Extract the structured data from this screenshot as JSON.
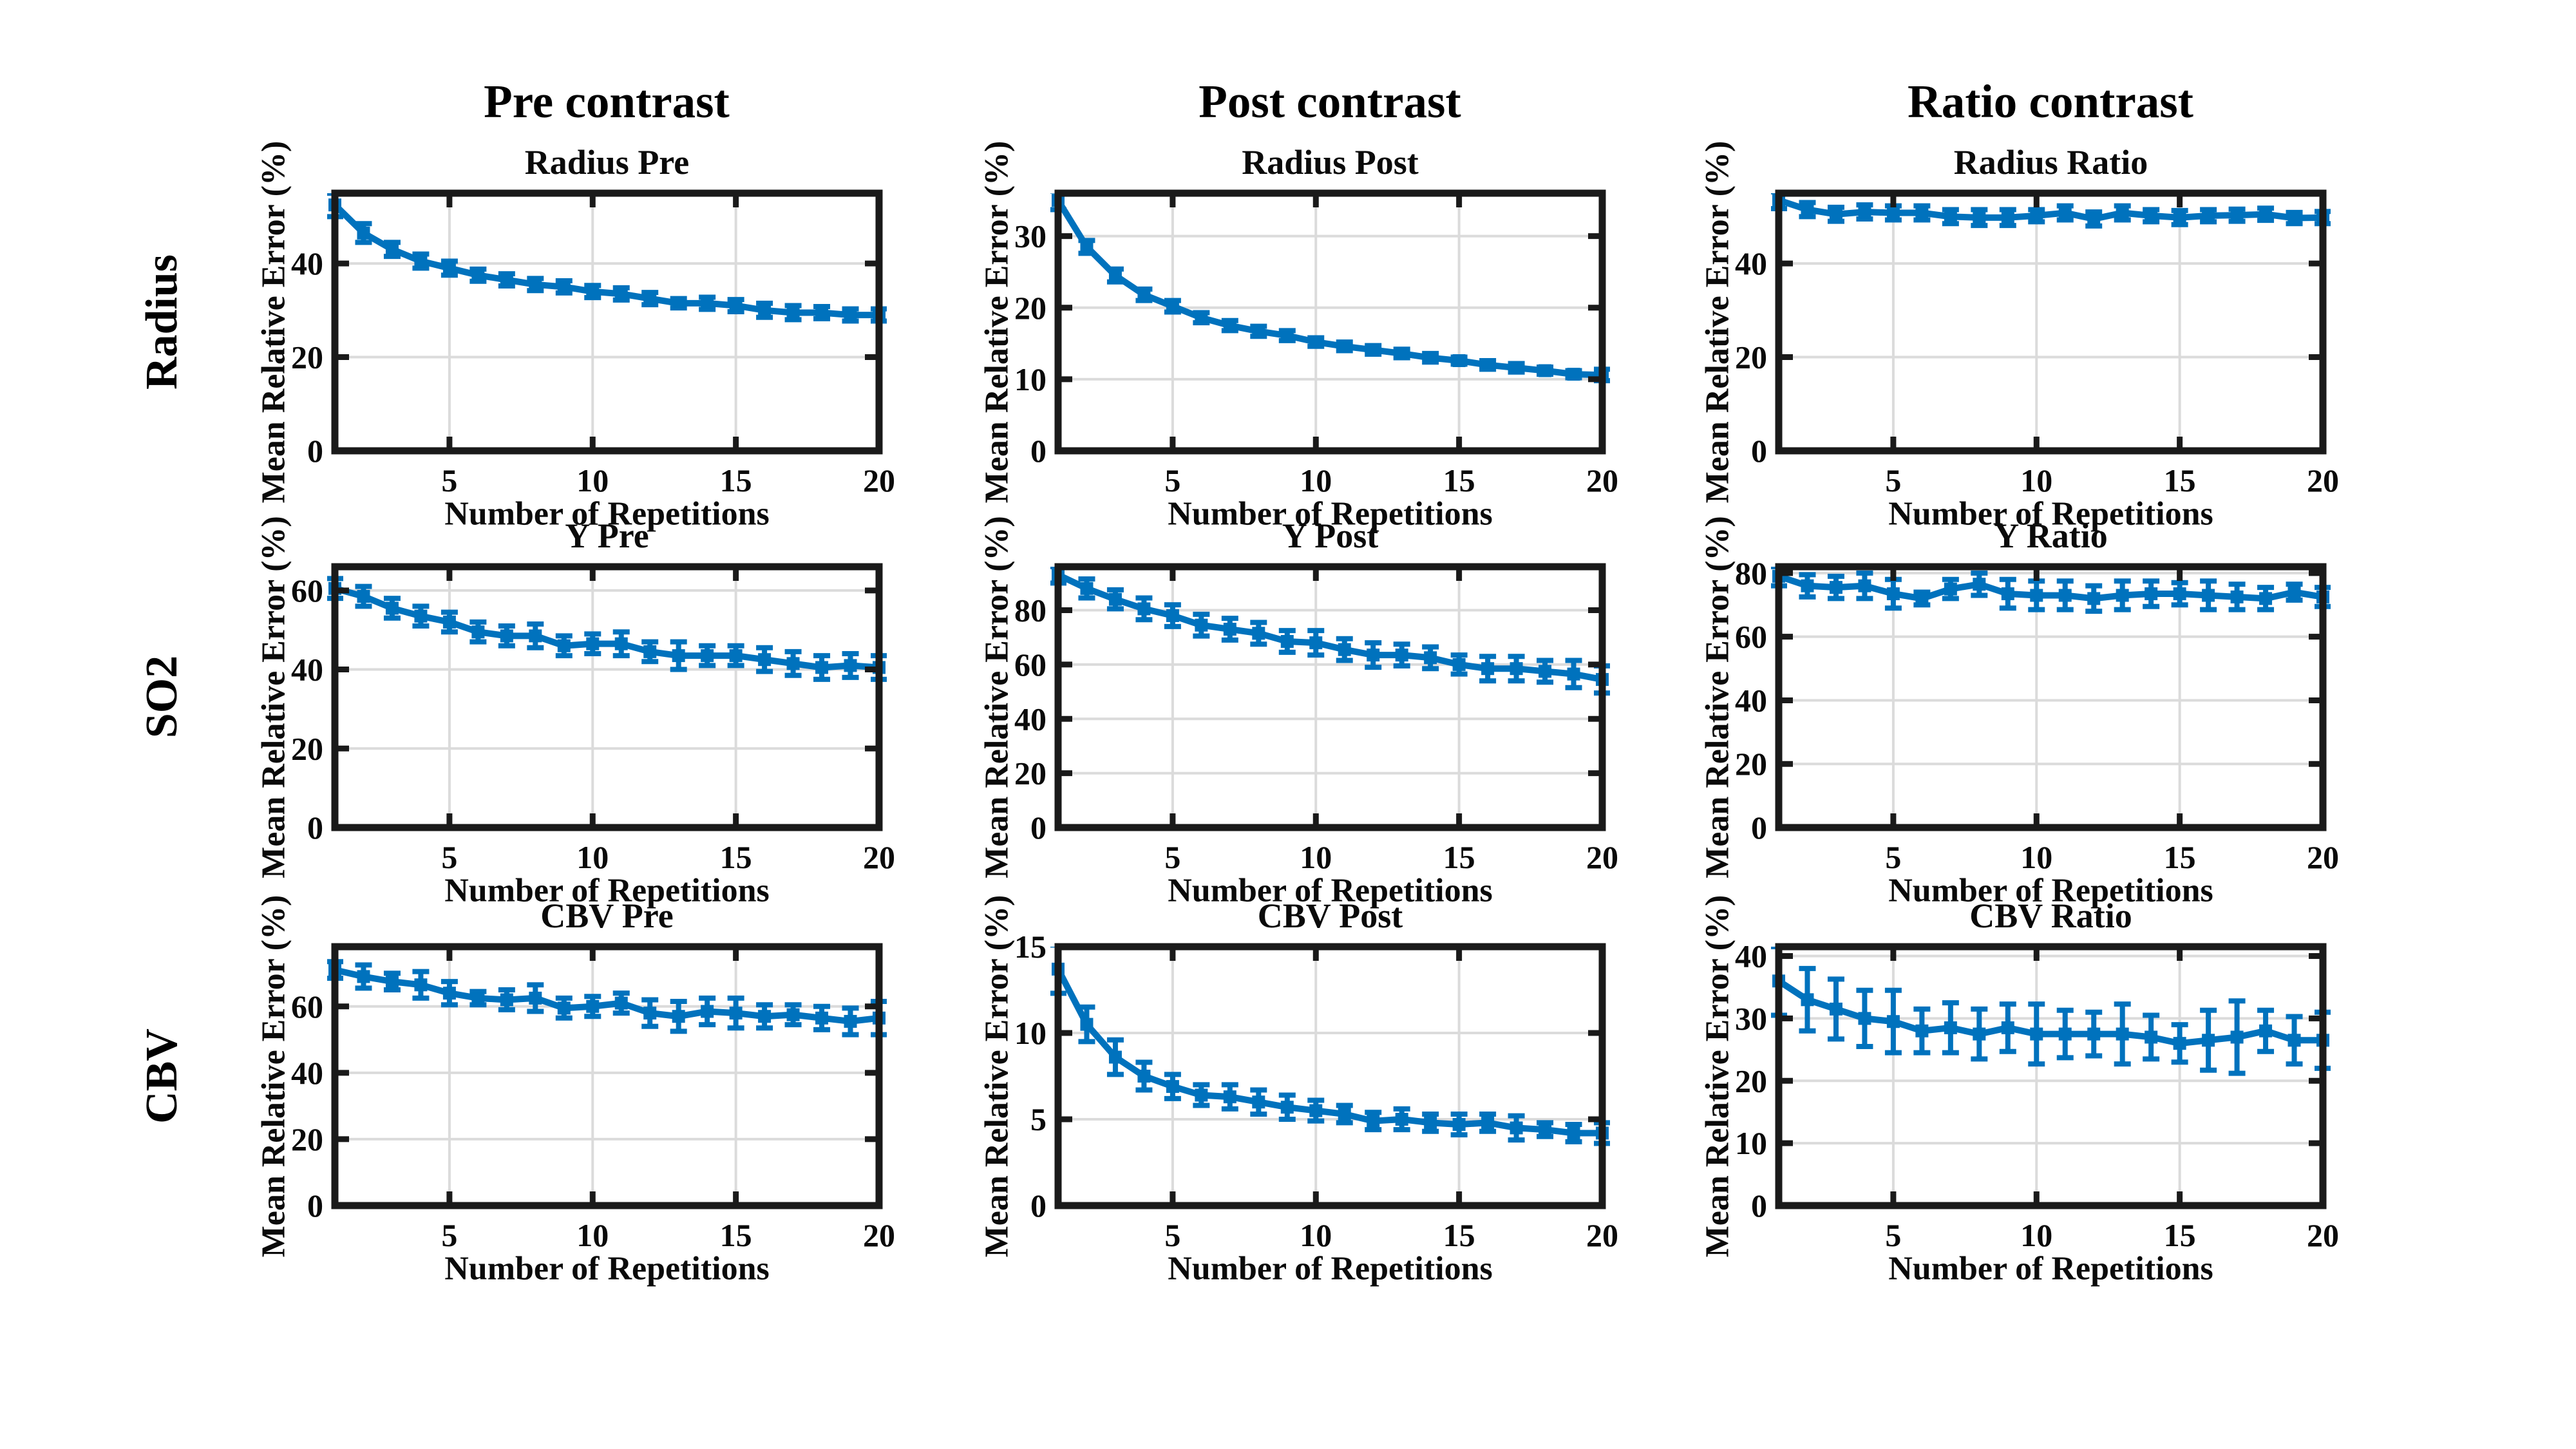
{
  "figure": {
    "background": "#ffffff",
    "accent_blue": "#0072BD",
    "grid_color": "#dbdbdb",
    "axis_color": "#1a1a1a",
    "column_headers": [
      "Pre contrast",
      "Post contrast",
      "Ratio contrast"
    ],
    "row_labels": [
      "Radius",
      "SO2",
      "CBV"
    ],
    "xlabel": "Number of Repetitions",
    "ylabel": "Mean Relative Error (%)"
  },
  "chart_data": [
    {
      "type": "line",
      "title": "Radius Pre",
      "row": 0,
      "col": 0,
      "xlabel": "Number of Repetitions",
      "ylabel": "Mean Relative Error (%)",
      "xlim": [
        1,
        20
      ],
      "ylim": [
        0,
        55
      ],
      "xticks": [
        5,
        10,
        15,
        20
      ],
      "yticks": [
        0,
        20,
        40
      ],
      "grid": true,
      "line_color": "#0072BD",
      "x": [
        1,
        2,
        3,
        4,
        5,
        6,
        7,
        8,
        9,
        10,
        11,
        12,
        13,
        14,
        15,
        16,
        17,
        18,
        19,
        20
      ],
      "values": [
        52.5,
        46.5,
        43,
        40.5,
        39,
        37.5,
        36.5,
        35.5,
        35,
        34,
        33.5,
        32.5,
        31.5,
        31.5,
        31,
        30,
        29.5,
        29.5,
        29,
        29
      ],
      "errors": [
        2.5,
        2,
        1.5,
        1.5,
        1.5,
        1.3,
        1.3,
        1.3,
        1.3,
        1.3,
        1.3,
        1.3,
        1,
        1.3,
        1.3,
        1.5,
        1.5,
        1.3,
        1.3,
        1.3
      ]
    },
    {
      "type": "line",
      "title": "Radius Post",
      "row": 0,
      "col": 1,
      "xlabel": "Number of Repetitions",
      "ylabel": "Mean Relative Error (%)",
      "xlim": [
        1,
        20
      ],
      "ylim": [
        0,
        36
      ],
      "xticks": [
        5,
        10,
        15,
        20
      ],
      "yticks": [
        0,
        10,
        20,
        30
      ],
      "grid": true,
      "line_color": "#0072BD",
      "x": [
        1,
        2,
        3,
        4,
        5,
        6,
        7,
        8,
        9,
        10,
        11,
        12,
        13,
        14,
        15,
        16,
        17,
        18,
        19,
        20
      ],
      "values": [
        35,
        28.5,
        24.5,
        21.8,
        20.2,
        18.6,
        17.5,
        16.7,
        16.1,
        15.2,
        14.6,
        14.1,
        13.6,
        13,
        12.6,
        12,
        11.6,
        11.2,
        10.7,
        10.6
      ],
      "errors": [
        1.3,
        0.9,
        0.9,
        0.8,
        0.8,
        0.7,
        0.7,
        0.7,
        0.7,
        0.6,
        0.6,
        0.6,
        0.6,
        0.6,
        0.5,
        0.6,
        0.6,
        0.5,
        0.5,
        0.8
      ]
    },
    {
      "type": "line",
      "title": "Radius Ratio",
      "row": 0,
      "col": 2,
      "xlabel": "Number of Repetitions",
      "ylabel": "Mean Relative Error (%)",
      "xlim": [
        1,
        20
      ],
      "ylim": [
        0,
        55
      ],
      "xticks": [
        5,
        10,
        15,
        20
      ],
      "yticks": [
        0,
        20,
        40
      ],
      "grid": true,
      "line_color": "#0072BD",
      "x": [
        1,
        2,
        3,
        4,
        5,
        6,
        7,
        8,
        9,
        10,
        11,
        12,
        13,
        14,
        15,
        16,
        17,
        18,
        19,
        20
      ],
      "values": [
        53.5,
        51.5,
        50.5,
        51,
        50.8,
        50.8,
        50,
        49.8,
        49.8,
        50.2,
        50.8,
        49.5,
        50.8,
        50.2,
        49.8,
        50.2,
        50.3,
        50.5,
        49.7,
        49.8
      ],
      "errors": [
        1.8,
        1.5,
        1.5,
        1.5,
        1.5,
        1.5,
        1.5,
        1.7,
        1.7,
        1.3,
        1.5,
        1.5,
        1.5,
        1.3,
        1.5,
        1.3,
        1.3,
        1.3,
        1.2,
        1.3
      ]
    },
    {
      "type": "line",
      "title": "Y Pre",
      "row": 1,
      "col": 0,
      "xlabel": "Number of Repetitions",
      "ylabel": "Mean Relative Error (%)",
      "xlim": [
        1,
        20
      ],
      "ylim": [
        0,
        66
      ],
      "xticks": [
        5,
        10,
        15,
        20
      ],
      "yticks": [
        0,
        20,
        40,
        60
      ],
      "grid": true,
      "line_color": "#0072BD",
      "x": [
        1,
        2,
        3,
        4,
        5,
        6,
        7,
        8,
        9,
        10,
        11,
        12,
        13,
        14,
        15,
        16,
        17,
        18,
        19,
        20
      ],
      "values": [
        60.5,
        58.5,
        55.5,
        53.5,
        52,
        49.5,
        48.5,
        48.5,
        46,
        46.5,
        46.5,
        44.5,
        43.5,
        43.5,
        43.5,
        42.5,
        41.5,
        40.5,
        41,
        40.5
      ],
      "errors": [
        2.5,
        2.5,
        2.5,
        2.5,
        2.5,
        2.5,
        2.5,
        3,
        2.5,
        2.5,
        3,
        2.5,
        3.5,
        2.5,
        2.5,
        3,
        3,
        3,
        3,
        3
      ]
    },
    {
      "type": "line",
      "title": "Y Post",
      "row": 1,
      "col": 1,
      "xlabel": "Number of Repetitions",
      "ylabel": "Mean Relative Error (%)",
      "xlim": [
        1,
        20
      ],
      "ylim": [
        0,
        96
      ],
      "xticks": [
        5,
        10,
        15,
        20
      ],
      "yticks": [
        0,
        20,
        40,
        60,
        80
      ],
      "grid": true,
      "line_color": "#0072BD",
      "x": [
        1,
        2,
        3,
        4,
        5,
        6,
        7,
        8,
        9,
        10,
        11,
        12,
        13,
        14,
        15,
        16,
        17,
        18,
        19,
        20
      ],
      "values": [
        93,
        88,
        84,
        80.5,
        78,
        74.5,
        73,
        71.5,
        68.5,
        68,
        65.5,
        63.5,
        63.5,
        62.5,
        60,
        58.5,
        58.5,
        57.5,
        56.5,
        54.5
      ],
      "errors": [
        3,
        3.5,
        3.5,
        4,
        4,
        4,
        4,
        4,
        4,
        4.5,
        4,
        4.5,
        4,
        4,
        3.5,
        4.5,
        4.5,
        4,
        5,
        5
      ]
    },
    {
      "type": "line",
      "title": "Y Ratio",
      "row": 1,
      "col": 2,
      "xlabel": "Number of Repetitions",
      "ylabel": "Mean Relative Error (%)",
      "xlim": [
        1,
        20
      ],
      "ylim": [
        0,
        82
      ],
      "xticks": [
        5,
        10,
        15,
        20
      ],
      "yticks": [
        0,
        20,
        40,
        60,
        80
      ],
      "grid": true,
      "line_color": "#0072BD",
      "x": [
        1,
        2,
        3,
        4,
        5,
        6,
        7,
        8,
        9,
        10,
        11,
        12,
        13,
        14,
        15,
        16,
        17,
        18,
        19,
        20
      ],
      "values": [
        79,
        76,
        75.5,
        76,
        73.5,
        72,
        75,
        76.5,
        73.5,
        73,
        73,
        72,
        73,
        73.5,
        73.5,
        73,
        72.5,
        72,
        74,
        72.5
      ],
      "errors": [
        3,
        3.5,
        3.5,
        4,
        4.5,
        2,
        3,
        3.5,
        4.5,
        4.5,
        4.5,
        4,
        4.5,
        4,
        3.5,
        4.5,
        4,
        3.5,
        2.5,
        3
      ]
    },
    {
      "type": "line",
      "title": "CBV Pre",
      "row": 2,
      "col": 0,
      "xlabel": "Number of Repetitions",
      "ylabel": "Mean Relative Error (%)",
      "xlim": [
        1,
        20
      ],
      "ylim": [
        0,
        78
      ],
      "xticks": [
        5,
        10,
        15,
        20
      ],
      "yticks": [
        0,
        20,
        40,
        60
      ],
      "grid": true,
      "line_color": "#0072BD",
      "x": [
        1,
        2,
        3,
        4,
        5,
        6,
        7,
        8,
        9,
        10,
        11,
        12,
        13,
        14,
        15,
        16,
        17,
        18,
        19,
        20
      ],
      "values": [
        71,
        69,
        67.5,
        66.5,
        64,
        62.5,
        62,
        62.5,
        59.5,
        60,
        61,
        58,
        57,
        58.5,
        58,
        57,
        57.5,
        56.5,
        55.5,
        56.5
      ],
      "errors": [
        2.5,
        3.5,
        2.5,
        4,
        3.5,
        2,
        3,
        4,
        3,
        3,
        3,
        4,
        4.5,
        4,
        4.5,
        3.5,
        3,
        3.5,
        4,
        5
      ]
    },
    {
      "type": "line",
      "title": "CBV Post",
      "row": 2,
      "col": 1,
      "xlabel": "Number of Repetitions",
      "ylabel": "Mean Relative Error (%)",
      "xlim": [
        1,
        20
      ],
      "ylim": [
        0,
        15
      ],
      "xticks": [
        5,
        10,
        15,
        20
      ],
      "yticks": [
        0,
        5,
        10,
        15
      ],
      "grid": true,
      "line_color": "#0072BD",
      "x": [
        1,
        2,
        3,
        4,
        5,
        6,
        7,
        8,
        9,
        10,
        11,
        12,
        13,
        14,
        15,
        16,
        17,
        18,
        19,
        20
      ],
      "values": [
        13.7,
        10.5,
        8.6,
        7.5,
        6.9,
        6.4,
        6.3,
        6,
        5.7,
        5.5,
        5.3,
        4.9,
        5,
        4.8,
        4.7,
        4.8,
        4.5,
        4.4,
        4.2,
        4.2
      ],
      "errors": [
        1.4,
        1,
        1,
        0.8,
        0.7,
        0.6,
        0.7,
        0.7,
        0.7,
        0.6,
        0.5,
        0.5,
        0.6,
        0.5,
        0.6,
        0.5,
        0.7,
        0.4,
        0.5,
        0.6
      ]
    },
    {
      "type": "line",
      "title": "CBV Ratio",
      "row": 2,
      "col": 2,
      "xlabel": "Number of Repetitions",
      "ylabel": "Mean Relative Error (%)",
      "xlim": [
        1,
        20
      ],
      "ylim": [
        0,
        41.5
      ],
      "xticks": [
        5,
        10,
        15,
        20
      ],
      "yticks": [
        0,
        10,
        20,
        30,
        40
      ],
      "grid": true,
      "line_color": "#0072BD",
      "x": [
        1,
        2,
        3,
        4,
        5,
        6,
        7,
        8,
        9,
        10,
        11,
        12,
        13,
        14,
        15,
        16,
        17,
        18,
        19,
        20
      ],
      "values": [
        36,
        33,
        31.5,
        30,
        29.5,
        28,
        28.5,
        27.5,
        28.5,
        27.5,
        27.5,
        27.5,
        27.5,
        27,
        26,
        26.5,
        27,
        28,
        26.5,
        26.5
      ],
      "errors": [
        5.5,
        5,
        4.8,
        4.5,
        5,
        3.5,
        4,
        4,
        3.8,
        4.8,
        3.8,
        3.5,
        4.8,
        3.5,
        3,
        4.8,
        5.8,
        3.3,
        3.8,
        4.5
      ]
    }
  ]
}
